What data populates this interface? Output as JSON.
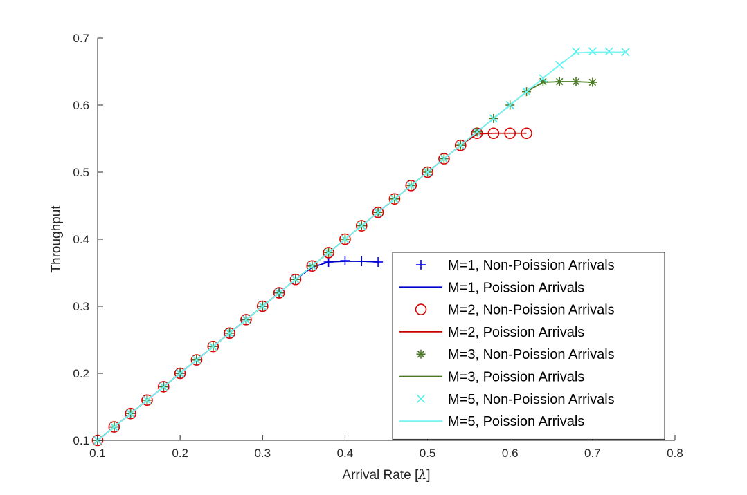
{
  "chart_data": {
    "type": "line",
    "title": "",
    "xlabel": "Arrival Rate [",
    "xlabel_symbol": "λ",
    "xlabel_end": "]",
    "ylabel": "Throughput",
    "xlim": [
      0.1,
      0.8
    ],
    "ylim": [
      0.1,
      0.7
    ],
    "x_ticks": [
      0.1,
      0.2,
      0.3,
      0.4,
      0.5,
      0.6,
      0.7,
      0.8
    ],
    "x_tick_labels": [
      "0.1",
      "0.2",
      "0.3",
      "0.4",
      "0.5",
      "0.6",
      "0.7",
      "0.8"
    ],
    "y_ticks": [
      0.1,
      0.2,
      0.3,
      0.4,
      0.5,
      0.6,
      0.7
    ],
    "y_tick_labels": [
      "0.1",
      "0.2",
      "0.3",
      "0.4",
      "0.5",
      "0.6",
      "0.7"
    ],
    "grid": false,
    "legend_position": "lower-right",
    "series": [
      {
        "name": "M=1, Non-Poission Arrivals",
        "kind": "marker",
        "marker": "plus",
        "color": "#0000ff",
        "x": [
          0.1,
          0.12,
          0.14,
          0.16,
          0.18,
          0.2,
          0.22,
          0.24,
          0.26,
          0.28,
          0.3,
          0.32,
          0.34,
          0.36,
          0.38,
          0.4,
          0.42,
          0.44
        ],
        "y": [
          0.1,
          0.12,
          0.14,
          0.16,
          0.18,
          0.2,
          0.22,
          0.24,
          0.26,
          0.28,
          0.3,
          0.32,
          0.34,
          0.36,
          0.366,
          0.368,
          0.367,
          0.366
        ]
      },
      {
        "name": "M=1, Poission Arrivals",
        "kind": "line",
        "color": "#0000cc",
        "x": [
          0.1,
          0.12,
          0.14,
          0.16,
          0.18,
          0.2,
          0.22,
          0.24,
          0.26,
          0.28,
          0.3,
          0.32,
          0.34,
          0.36,
          0.38,
          0.4,
          0.42,
          0.44
        ],
        "y": [
          0.1,
          0.12,
          0.14,
          0.16,
          0.18,
          0.2,
          0.22,
          0.24,
          0.26,
          0.28,
          0.3,
          0.32,
          0.34,
          0.358,
          0.366,
          0.367,
          0.367,
          0.366
        ]
      },
      {
        "name": "M=2, Non-Poission Arrivals",
        "kind": "marker",
        "marker": "circle",
        "color": "#dd0000",
        "x": [
          0.1,
          0.12,
          0.14,
          0.16,
          0.18,
          0.2,
          0.22,
          0.24,
          0.26,
          0.28,
          0.3,
          0.32,
          0.34,
          0.36,
          0.38,
          0.4,
          0.42,
          0.44,
          0.46,
          0.48,
          0.5,
          0.52,
          0.54,
          0.56,
          0.58,
          0.6,
          0.62
        ],
        "y": [
          0.1,
          0.12,
          0.14,
          0.16,
          0.18,
          0.2,
          0.22,
          0.24,
          0.26,
          0.28,
          0.3,
          0.32,
          0.34,
          0.36,
          0.38,
          0.4,
          0.42,
          0.44,
          0.46,
          0.48,
          0.5,
          0.52,
          0.54,
          0.558,
          0.558,
          0.558,
          0.558
        ]
      },
      {
        "name": "M=2, Poission Arrivals",
        "kind": "line",
        "color": "#cc0000",
        "x": [
          0.1,
          0.12,
          0.14,
          0.16,
          0.18,
          0.2,
          0.22,
          0.24,
          0.26,
          0.28,
          0.3,
          0.32,
          0.34,
          0.36,
          0.38,
          0.4,
          0.42,
          0.44,
          0.46,
          0.48,
          0.5,
          0.52,
          0.54,
          0.56,
          0.58,
          0.6,
          0.62
        ],
        "y": [
          0.1,
          0.12,
          0.14,
          0.16,
          0.18,
          0.2,
          0.22,
          0.24,
          0.26,
          0.28,
          0.3,
          0.32,
          0.34,
          0.36,
          0.38,
          0.4,
          0.42,
          0.44,
          0.46,
          0.48,
          0.5,
          0.52,
          0.54,
          0.557,
          0.558,
          0.558,
          0.558
        ]
      },
      {
        "name": "M=3, Non-Poission Arrivals",
        "kind": "marker",
        "marker": "star",
        "color": "#4b7a22",
        "x": [
          0.1,
          0.12,
          0.14,
          0.16,
          0.18,
          0.2,
          0.22,
          0.24,
          0.26,
          0.28,
          0.3,
          0.32,
          0.34,
          0.36,
          0.38,
          0.4,
          0.42,
          0.44,
          0.46,
          0.48,
          0.5,
          0.52,
          0.54,
          0.56,
          0.58,
          0.6,
          0.62,
          0.64,
          0.66,
          0.68,
          0.7
        ],
        "y": [
          0.1,
          0.12,
          0.14,
          0.16,
          0.18,
          0.2,
          0.22,
          0.24,
          0.26,
          0.28,
          0.3,
          0.32,
          0.34,
          0.36,
          0.38,
          0.4,
          0.42,
          0.44,
          0.46,
          0.48,
          0.5,
          0.52,
          0.54,
          0.56,
          0.58,
          0.6,
          0.62,
          0.635,
          0.635,
          0.635,
          0.634
        ]
      },
      {
        "name": "M=3, Poission Arrivals",
        "kind": "line",
        "color": "#4b7a22",
        "x": [
          0.1,
          0.12,
          0.14,
          0.16,
          0.18,
          0.2,
          0.22,
          0.24,
          0.26,
          0.28,
          0.3,
          0.32,
          0.34,
          0.36,
          0.38,
          0.4,
          0.42,
          0.44,
          0.46,
          0.48,
          0.5,
          0.52,
          0.54,
          0.56,
          0.58,
          0.6,
          0.62,
          0.64,
          0.66,
          0.68,
          0.7
        ],
        "y": [
          0.1,
          0.12,
          0.14,
          0.16,
          0.18,
          0.2,
          0.22,
          0.24,
          0.26,
          0.28,
          0.3,
          0.32,
          0.34,
          0.36,
          0.38,
          0.4,
          0.42,
          0.44,
          0.46,
          0.48,
          0.5,
          0.52,
          0.54,
          0.56,
          0.58,
          0.6,
          0.62,
          0.634,
          0.635,
          0.635,
          0.634
        ]
      },
      {
        "name": "M=5, Non-Poission Arrivals",
        "kind": "marker",
        "marker": "cross",
        "color": "#55eeee",
        "x": [
          0.1,
          0.12,
          0.14,
          0.16,
          0.18,
          0.2,
          0.22,
          0.24,
          0.26,
          0.28,
          0.3,
          0.32,
          0.34,
          0.36,
          0.38,
          0.4,
          0.42,
          0.44,
          0.46,
          0.48,
          0.5,
          0.52,
          0.54,
          0.56,
          0.58,
          0.6,
          0.62,
          0.64,
          0.66,
          0.68,
          0.7,
          0.72,
          0.74
        ],
        "y": [
          0.1,
          0.12,
          0.14,
          0.16,
          0.18,
          0.2,
          0.22,
          0.24,
          0.26,
          0.28,
          0.3,
          0.32,
          0.34,
          0.36,
          0.38,
          0.4,
          0.42,
          0.44,
          0.46,
          0.48,
          0.5,
          0.52,
          0.54,
          0.56,
          0.58,
          0.6,
          0.62,
          0.64,
          0.66,
          0.68,
          0.68,
          0.68,
          0.679
        ]
      },
      {
        "name": "M=5, Poission Arrivals",
        "kind": "line",
        "color": "#77f4f4",
        "x": [
          0.1,
          0.12,
          0.14,
          0.16,
          0.18,
          0.2,
          0.22,
          0.24,
          0.26,
          0.28,
          0.3,
          0.32,
          0.34,
          0.36,
          0.38,
          0.4,
          0.42,
          0.44,
          0.46,
          0.48,
          0.5,
          0.52,
          0.54,
          0.56,
          0.58,
          0.6,
          0.62,
          0.64,
          0.66,
          0.68,
          0.7,
          0.72,
          0.74
        ],
        "y": [
          0.1,
          0.12,
          0.14,
          0.16,
          0.18,
          0.2,
          0.22,
          0.24,
          0.26,
          0.28,
          0.3,
          0.32,
          0.34,
          0.36,
          0.38,
          0.4,
          0.42,
          0.44,
          0.46,
          0.48,
          0.5,
          0.52,
          0.54,
          0.56,
          0.58,
          0.6,
          0.62,
          0.64,
          0.66,
          0.678,
          0.679,
          0.679,
          0.679
        ]
      }
    ]
  }
}
